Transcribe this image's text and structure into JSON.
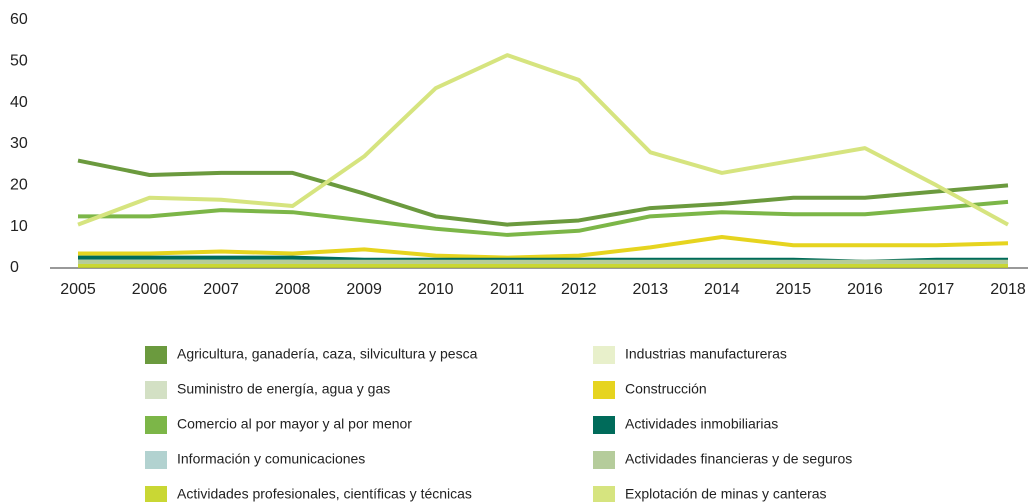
{
  "chart_data": {
    "type": "line",
    "x": [
      2005,
      2006,
      2007,
      2008,
      2009,
      2010,
      2011,
      2012,
      2013,
      2014,
      2015,
      2016,
      2017,
      2018
    ],
    "ylim": [
      0,
      60
    ],
    "yticks": [
      0,
      10,
      20,
      30,
      40,
      50,
      60
    ],
    "grid": false,
    "series": [
      {
        "name": "Agricultura, ganadería, caza, silvicultura y pesca",
        "color": "#6b9a3e",
        "values": [
          26,
          22.5,
          23,
          23,
          18,
          12.5,
          10.5,
          11.5,
          14.5,
          15.5,
          17,
          17,
          18.5,
          20
        ]
      },
      {
        "name": "Industrias manufactureras",
        "color": "#e8f0cb",
        "values": [
          1,
          1,
          1,
          1,
          1,
          1,
          1,
          1,
          1,
          1,
          1,
          1,
          1,
          1
        ]
      },
      {
        "name": "Suministro de energía, agua y gas",
        "color": "#d3e0c4",
        "values": [
          1.5,
          1.5,
          1.5,
          1.5,
          1.5,
          1.5,
          1.5,
          1.5,
          1.5,
          1.5,
          1.5,
          1.5,
          1.5,
          1.5
        ]
      },
      {
        "name": "Construcción",
        "color": "#e6d41f",
        "values": [
          3.5,
          3.5,
          4,
          3.5,
          4.5,
          3,
          2.5,
          3,
          5,
          7.5,
          5.5,
          5.5,
          5.5,
          6
        ]
      },
      {
        "name": "Comercio al por mayor y al por menor",
        "color": "#7cb648",
        "values": [
          12.5,
          12.5,
          14,
          13.5,
          11.5,
          9.5,
          8,
          9,
          12.5,
          13.5,
          13,
          13,
          14.5,
          16
        ]
      },
      {
        "name": "Actividades inmobiliarias",
        "color": "#006b5a",
        "values": [
          2.5,
          2.5,
          2.5,
          2.5,
          2,
          2,
          2,
          2,
          2,
          2,
          2,
          1.5,
          2,
          2
        ]
      },
      {
        "name": "Información y comunicaciones",
        "color": "#b2d2d0",
        "values": [
          1,
          1,
          1,
          1,
          1,
          1,
          1,
          1,
          1,
          1,
          1,
          1,
          1,
          1
        ]
      },
      {
        "name": "Actividades financieras y de seguros",
        "color": "#b5cc9b",
        "values": [
          1.5,
          1.5,
          1.5,
          1.5,
          1.5,
          1.5,
          1.5,
          1.5,
          1.5,
          1.5,
          1.5,
          1.5,
          1.5,
          1.5
        ]
      },
      {
        "name": "Actividades profesionales, científicas y técnicas",
        "color": "#c9d734",
        "values": [
          0.5,
          0.5,
          0.5,
          0.5,
          0.5,
          0.5,
          0.5,
          0.5,
          0.5,
          0.5,
          0.5,
          0.5,
          0.5,
          0.5
        ]
      },
      {
        "name": "Explotación de minas y canteras",
        "color": "#d6e47f",
        "values": [
          10.5,
          17,
          16.5,
          15,
          27,
          43.5,
          51.5,
          45.5,
          28,
          23,
          26,
          29,
          20,
          10.5
        ]
      }
    ]
  }
}
